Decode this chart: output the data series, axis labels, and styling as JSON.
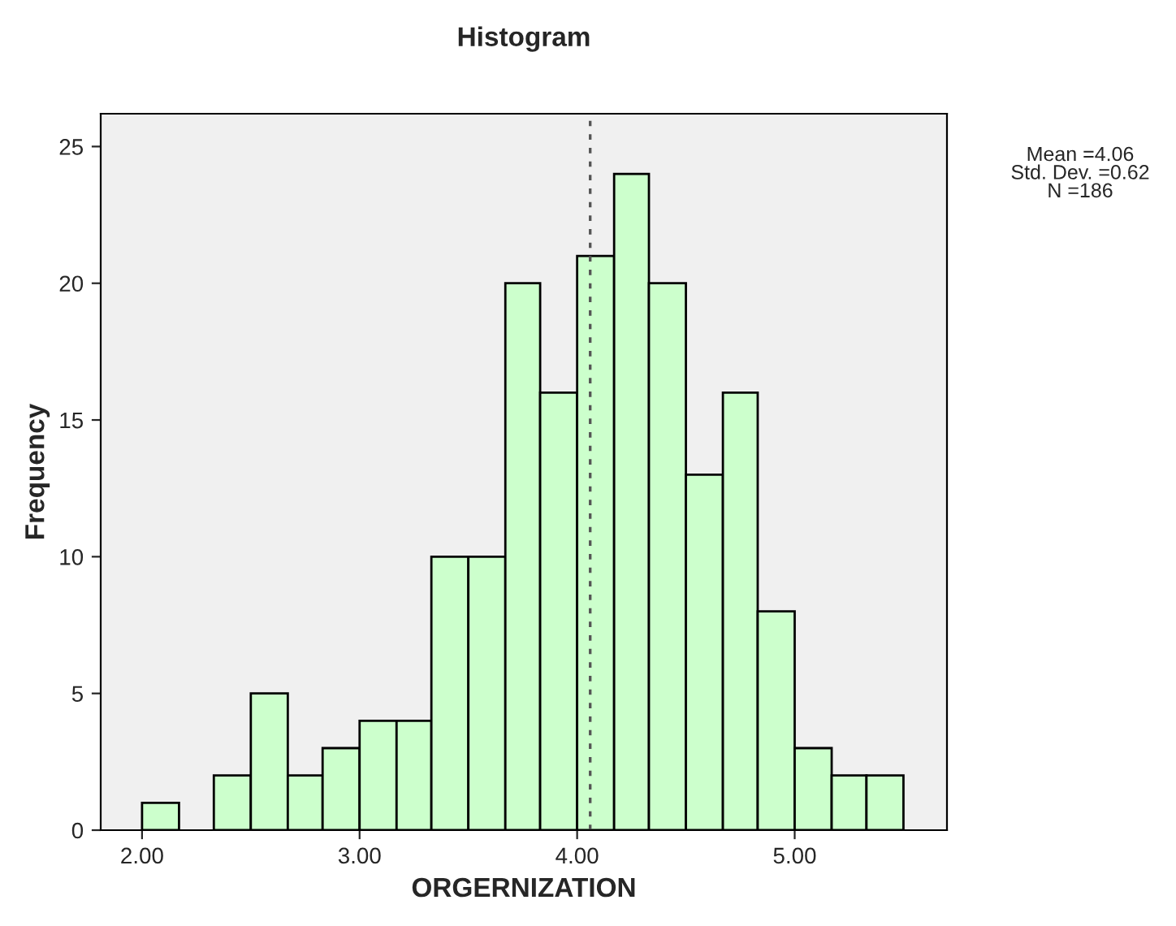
{
  "chart_data": {
    "type": "histogram",
    "title": "Histogram",
    "xlabel": "ORGERNIZATION",
    "ylabel": "Frequency",
    "bins": [
      2.0,
      2.17,
      2.33,
      2.5,
      2.67,
      2.83,
      3.0,
      3.17,
      3.33,
      3.5,
      3.67,
      3.83,
      4.0,
      4.17,
      4.33,
      4.5,
      4.67,
      4.83,
      5.0,
      5.17,
      5.33,
      5.5
    ],
    "values": [
      1,
      0,
      2,
      5,
      2,
      3,
      4,
      4,
      10,
      10,
      20,
      16,
      21,
      24,
      20,
      13,
      16,
      8,
      3,
      2,
      2
    ],
    "color": "#ccffcc",
    "xlim": [
      1.81,
      5.7
    ],
    "ylim": [
      0,
      26.2
    ],
    "xticks": [
      {
        "value": 2,
        "label": "2.00"
      },
      {
        "value": 3,
        "label": "3.00"
      },
      {
        "value": 4,
        "label": "4.00"
      },
      {
        "value": 5,
        "label": "5.00"
      }
    ],
    "yticks": [
      0,
      5,
      10,
      15,
      20,
      25
    ],
    "ref_lines": [
      {
        "axis": "x",
        "value": 4.06,
        "line_style": "dotted",
        "color": "#555555"
      }
    ],
    "annotations": [
      "Mean =4.06\nStd. Dev. =0.62\nN =186"
    ],
    "grid": false
  }
}
